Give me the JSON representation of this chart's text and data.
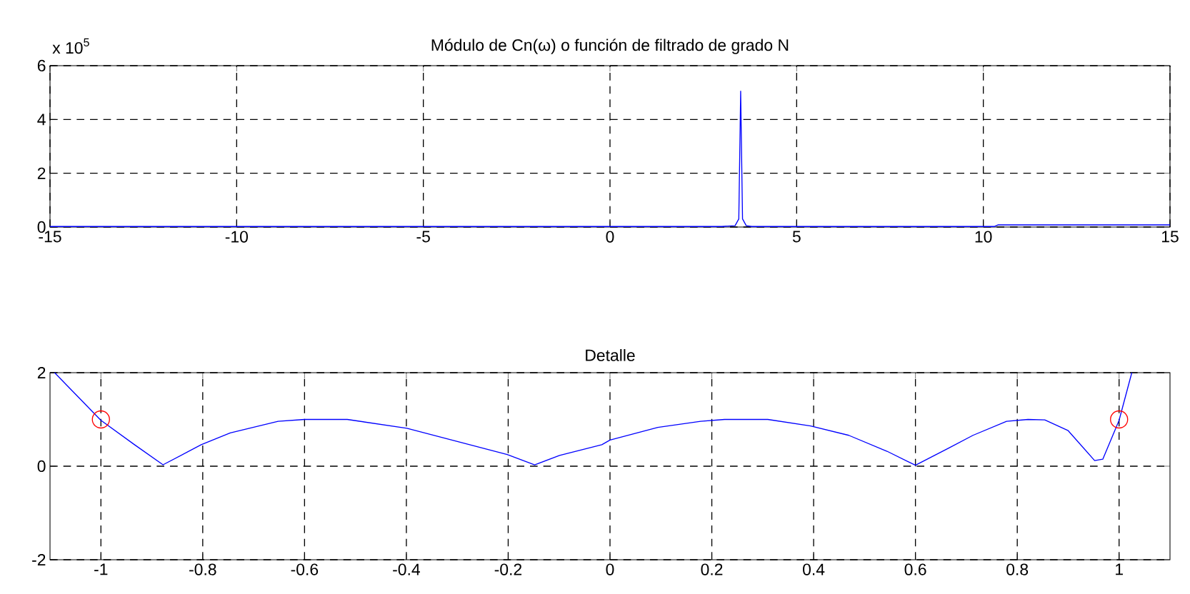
{
  "chart_data": [
    {
      "type": "line",
      "title": "Módulo de Cn(ω) o función de filtrado de grado N",
      "annotations": [
        "x 10$^{5}$"
      ],
      "xlim": [
        -15,
        15
      ],
      "ylim": [
        0,
        6
      ],
      "xticks": [
        -15,
        -10,
        -5,
        0,
        5,
        10,
        15
      ],
      "yticks": [
        0,
        2,
        4,
        6
      ],
      "grid": true,
      "series": [
        {
          "color": "#0000ff",
          "marker": "none",
          "x": [
            -15,
            3.0,
            3.35,
            3.45,
            3.5,
            3.55,
            3.65,
            3.8,
            10.3,
            10.4,
            15
          ],
          "values": [
            0.02,
            0.02,
            0.05,
            0.3,
            5.05,
            0.3,
            0.05,
            0.02,
            0.02,
            0.08,
            0.08
          ]
        }
      ]
    },
    {
      "type": "line",
      "title": "Detalle",
      "xlim": [
        -1.1,
        1.1
      ],
      "ylim": [
        -2,
        2
      ],
      "xticks": [
        -1,
        -0.8,
        -0.6,
        -0.4,
        -0.2,
        0,
        0.2,
        0.4,
        0.6,
        0.8,
        1
      ],
      "yticks": [
        -2,
        0,
        2
      ],
      "grid": true,
      "series": [
        {
          "color": "#0000ff",
          "marker": "none",
          "x": [
            -1.091,
            -1.0,
            -0.934,
            -0.878,
            -0.803,
            -0.746,
            -0.652,
            -0.6,
            -0.516,
            -0.399,
            -0.202,
            -0.148,
            -0.099,
            -0.016,
            0.0,
            0.094,
            0.178,
            0.225,
            0.31,
            0.394,
            0.469,
            0.544,
            0.6,
            0.666,
            0.713,
            0.779,
            0.821,
            0.854,
            0.9,
            0.952,
            0.968,
            1.0,
            1.025
          ],
          "values": [
            2.0,
            0.98,
            0.46,
            0.03,
            0.46,
            0.71,
            0.96,
            1.0,
            1.0,
            0.81,
            0.25,
            0.03,
            0.23,
            0.46,
            0.56,
            0.83,
            0.96,
            1.0,
            1.0,
            0.86,
            0.66,
            0.32,
            0.02,
            0.39,
            0.66,
            0.96,
            1.0,
            0.99,
            0.76,
            0.12,
            0.15,
            0.98,
            2.0
          ]
        },
        {
          "type": "scatter",
          "color": "#ff0000",
          "marker": "circle",
          "x": [
            -1,
            1
          ],
          "values": [
            1,
            1
          ]
        }
      ]
    }
  ]
}
